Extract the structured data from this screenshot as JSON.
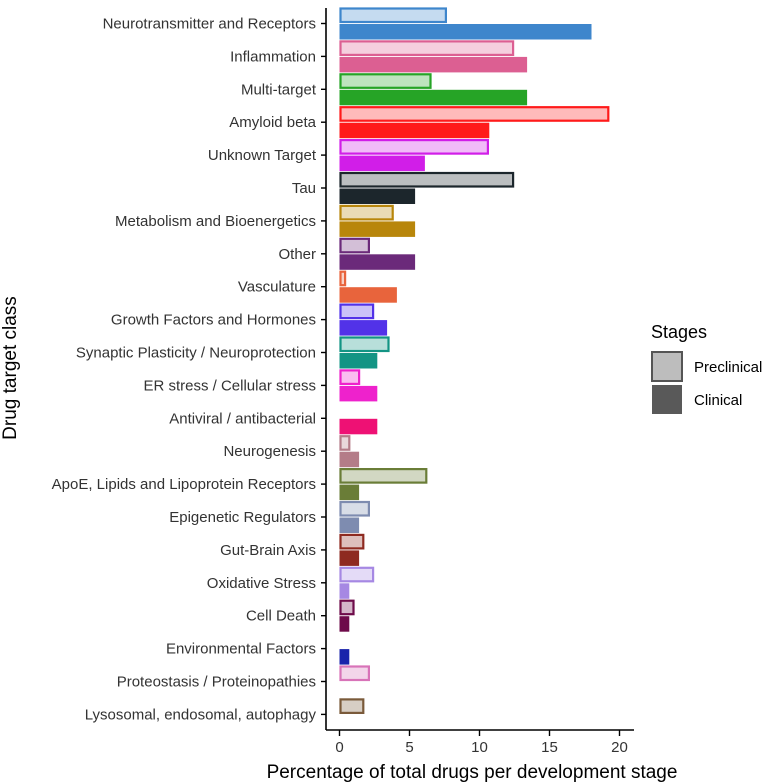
{
  "chart_data": {
    "type": "bar",
    "orientation": "horizontal",
    "xlabel": "Percentage of total drugs per development stage",
    "ylabel": "Drug target class",
    "xlim": [
      0,
      20
    ],
    "xticks": [
      0,
      5,
      10,
      15,
      20
    ],
    "grid": false,
    "legend": {
      "title": "Stages",
      "position": "right",
      "entries": [
        {
          "label": "Preclinical",
          "fill": "#bdbdbd",
          "stroke": "#555555"
        },
        {
          "label": "Clinical",
          "fill": "#595959",
          "stroke": "#595959"
        }
      ]
    },
    "categories": [
      "Neurotransmitter and Receptors",
      "Inflammation",
      "Multi-target",
      "Amyloid beta",
      "Unknown Target",
      "Tau",
      "Metabolism and Bioenergetics",
      "Other",
      "Vasculature",
      "Growth Factors and Hormones",
      "Synaptic Plasticity / Neuroprotection",
      "ER stress / Cellular stress",
      "Antiviral / antibacterial",
      "Neurogenesis",
      "ApoE, Lipids and Lipoprotein Receptors",
      "Epigenetic Regulators",
      "Gut-Brain Axis",
      "Oxidative Stress",
      "Cell Death",
      "Environmental Factors",
      "Proteostasis / Proteinopathies",
      "Lysosomal, endosomal, autophagy"
    ],
    "colors": [
      "#3e86cc",
      "#dc5f92",
      "#26a426",
      "#ff1a1a",
      "#d11ee8",
      "#1c262c",
      "#b8860b",
      "#6b2a7a",
      "#e8643c",
      "#5232e8",
      "#139484",
      "#ee22cc",
      "#ee1174",
      "#b47c88",
      "#6a7d37",
      "#7e8cb0",
      "#8e2a20",
      "#a688e3",
      "#6e0b4a",
      "#1a23ab",
      "#d873b8",
      "#7a5a3a"
    ],
    "series": [
      {
        "name": "Preclinical",
        "values": [
          7.6,
          12.4,
          6.5,
          19.2,
          10.6,
          12.4,
          3.8,
          2.1,
          0.4,
          2.4,
          3.5,
          1.4,
          0,
          0.7,
          6.2,
          2.1,
          1.7,
          2.4,
          1.0,
          0,
          2.1,
          1.7
        ]
      },
      {
        "name": "Clinical",
        "values": [
          18.0,
          13.4,
          13.4,
          10.7,
          6.1,
          5.4,
          5.4,
          5.4,
          4.1,
          3.4,
          2.7,
          2.7,
          2.7,
          1.4,
          1.4,
          1.4,
          1.4,
          0.7,
          0.7,
          0.7,
          0,
          0
        ]
      }
    ]
  }
}
